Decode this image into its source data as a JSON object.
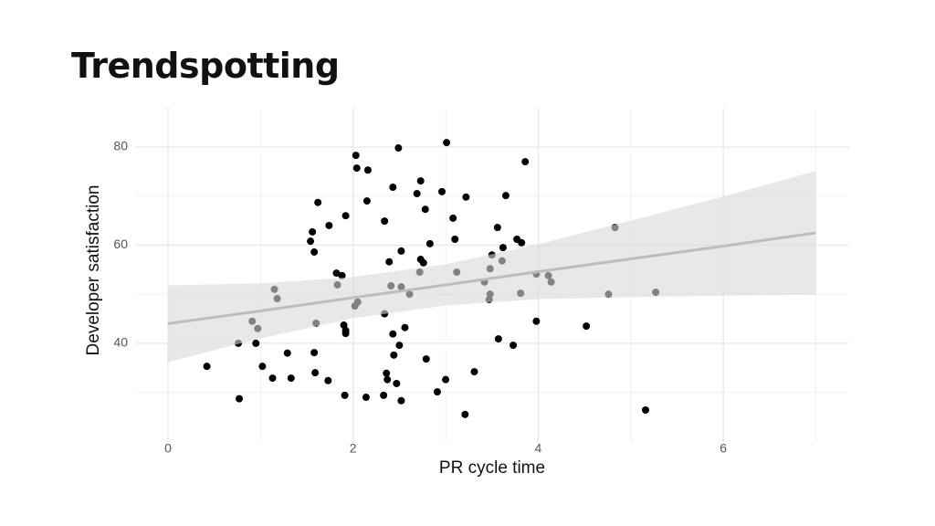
{
  "chart_data": {
    "type": "scatter",
    "title": "Trendspotting",
    "x_label": "PR cycle time",
    "y_label": "Developer satisfaction",
    "xlim": [
      -0.355,
      7.36
    ],
    "ylim": [
      19.7,
      88
    ],
    "xticks": [
      0,
      2,
      4,
      6
    ],
    "yticks": [
      40,
      60,
      80
    ],
    "x_minor_grid": [
      1,
      3,
      5,
      7
    ],
    "y_minor_grid": [
      30,
      50,
      70
    ],
    "grid": true,
    "color": "#000000",
    "x": [
      0.42,
      0.77,
      0.76,
      0.91,
      0.95,
      0.97,
      1.02,
      1.13,
      1.15,
      1.18,
      1.29,
      1.33,
      1.54,
      1.56,
      1.58,
      1.62,
      1.6,
      1.58,
      1.59,
      1.73,
      1.74,
      1.82,
      1.88,
      1.83,
      1.9,
      1.92,
      1.92,
      1.92,
      1.91,
      2.03,
      2.04,
      2.02,
      2.05,
      2.16,
      2.15,
      2.14,
      2.33,
      2.34,
      2.34,
      2.36,
      2.37,
      2.39,
      2.41,
      2.43,
      2.43,
      2.44,
      2.47,
      2.49,
      2.5,
      2.52,
      2.52,
      2.52,
      2.56,
      2.61,
      2.69,
      2.73,
      2.73,
      2.72,
      2.76,
      2.78,
      2.79,
      2.83,
      2.91,
      2.96,
      3.0,
      3.01,
      3.08,
      3.1,
      3.12,
      3.21,
      3.22,
      3.31,
      3.42,
      3.47,
      3.48,
      3.48,
      3.5,
      3.56,
      3.57,
      3.61,
      3.62,
      3.65,
      3.73,
      3.77,
      3.81,
      3.82,
      3.86,
      3.98,
      3.98,
      4.11,
      4.14,
      4.52,
      4.76,
      4.83,
      5.16,
      5.27
    ],
    "values": [
      35.3,
      28.7,
      40,
      44.5,
      40,
      43,
      35.3,
      32.9,
      51,
      49.1,
      38,
      32.9,
      60.8,
      62.7,
      58.6,
      68.7,
      44.1,
      38.1,
      34,
      32.4,
      64,
      54.3,
      53.8,
      51.9,
      43.7,
      42.6,
      42,
      66,
      29.4,
      78.3,
      75.7,
      47.6,
      48.4,
      75.3,
      69,
      29,
      29.4,
      64.9,
      46,
      33.9,
      32.6,
      56.6,
      51.7,
      71.8,
      41.9,
      37.6,
      31.8,
      79.8,
      39.6,
      58.8,
      51.5,
      28.3,
      43.2,
      50,
      70.5,
      73.1,
      57.1,
      54.5,
      56.4,
      67.3,
      36.8,
      60.3,
      30.1,
      70.9,
      32.6,
      80.9,
      65.5,
      61.2,
      54.5,
      25.5,
      69.8,
      34.2,
      52.5,
      48.9,
      50,
      55.2,
      58,
      63.6,
      40.9,
      56.8,
      59.5,
      70.1,
      39.6,
      61.2,
      50.2,
      60.5,
      77,
      54.1,
      44.5,
      53.8,
      52.5,
      43.5,
      50,
      63.6,
      26.4,
      50.4
    ],
    "trend": {
      "color": "#bdbdbd",
      "band_color": "#d9d9d9",
      "x": [
        0,
        1,
        2,
        3,
        4,
        5,
        6,
        7
      ],
      "fit": [
        44,
        46.6,
        49.3,
        51.9,
        54.6,
        57.2,
        59.8,
        62.5
      ],
      "lower": [
        36.2,
        41.0,
        45.1,
        47.7,
        49.0,
        49.4,
        49.7,
        49.9
      ],
      "upper": [
        51.8,
        52.2,
        53.5,
        56.1,
        60.2,
        65.0,
        69.9,
        75.1
      ]
    }
  }
}
